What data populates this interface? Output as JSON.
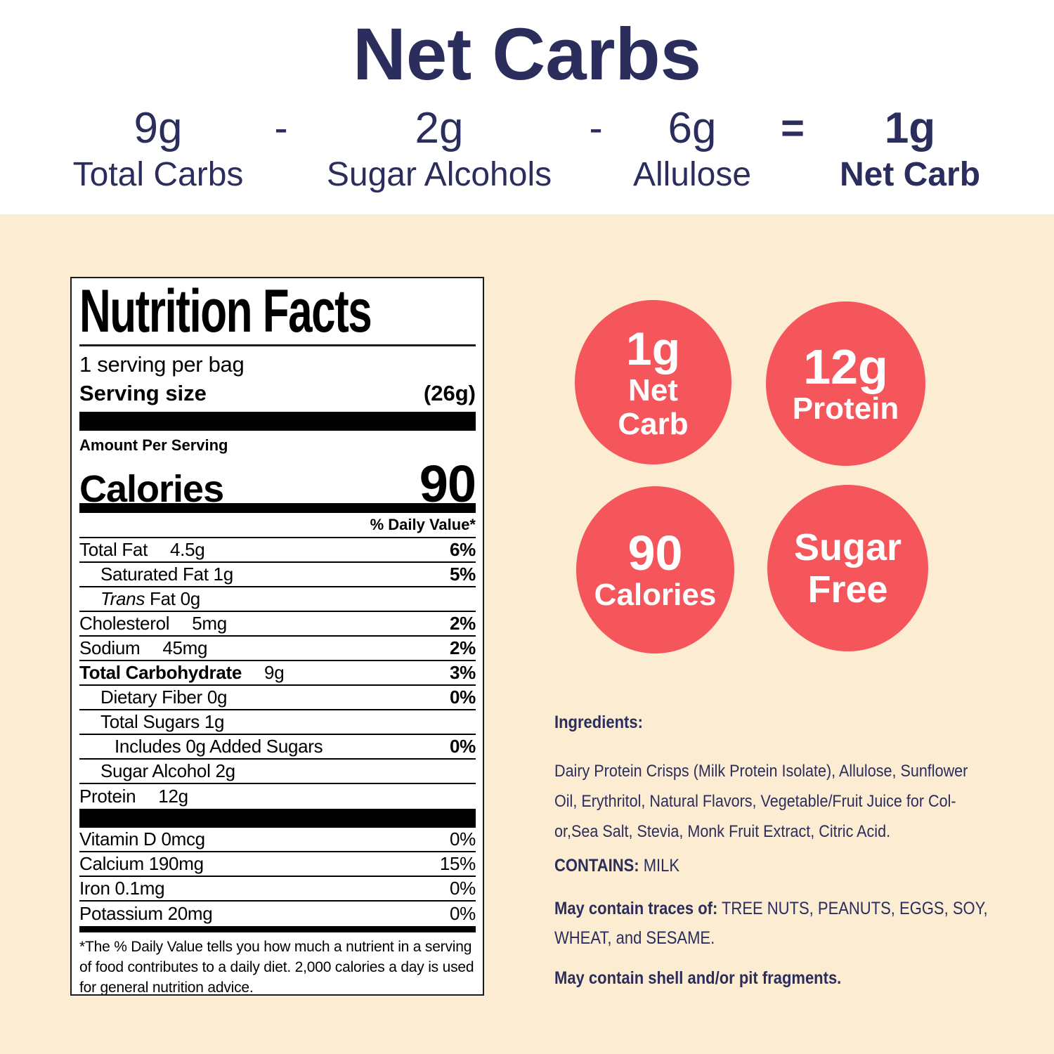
{
  "colors": {
    "navy": "#2B2E5C",
    "red": "#F4565C",
    "cream": "#FCECD2",
    "label_border": "#1b1b19",
    "white": "#FFFFFF",
    "black": "#000000"
  },
  "header": {
    "title": "Net Carbs",
    "terms": [
      {
        "value": "9g",
        "label": "Total Carbs"
      },
      {
        "value": "2g",
        "label": "Sugar Alcohols"
      },
      {
        "value": "6g",
        "label": "Allulose"
      },
      {
        "value": "1g",
        "label": "Net Carb",
        "bold": true
      }
    ],
    "operators": [
      "-",
      "-",
      "="
    ]
  },
  "nutrition_label": {
    "title": "Nutrition Facts",
    "servings_per": "1 serving per bag",
    "serving_size_label": "Serving size",
    "serving_size_value": "(26g)",
    "amount_per_serving": "Amount Per Serving",
    "calories_label": "Calories",
    "calories_value": "90",
    "daily_value_header": "% Daily Value*",
    "rows": [
      {
        "name": "Total Fat",
        "amount": "4.5g",
        "dv": "6%",
        "indent": 0
      },
      {
        "name": "Saturated Fat 1g",
        "dv": "5%",
        "indent": 1
      },
      {
        "italic": "Trans",
        "name": "Fat 0g",
        "indent": 1
      },
      {
        "name": "Cholesterol",
        "amount": "5mg",
        "dv": "2%",
        "indent": 0
      },
      {
        "name": "Sodium",
        "amount": "45mg",
        "dv": "2%",
        "indent": 0
      },
      {
        "name": "Total Carbohydrate",
        "amount": "9g",
        "dv": "3%",
        "indent": 0,
        "bold": true
      },
      {
        "name": "Dietary Fiber 0g",
        "dv": "0%",
        "indent": 1
      },
      {
        "name": "Total Sugars 1g",
        "indent": 1
      },
      {
        "name": "Includes 0g Added Sugars",
        "dv": "0%",
        "indent": 2
      },
      {
        "name": "Sugar Alcohol 2g",
        "indent": 1
      },
      {
        "name": "Protein",
        "amount": "12g",
        "indent": 0
      }
    ],
    "vitamins": [
      {
        "name": "Vitamin D 0mcg",
        "dv": "0%"
      },
      {
        "name": "Calcium 190mg",
        "dv": "15%"
      },
      {
        "name": "Iron 0.1mg",
        "dv": "0%"
      },
      {
        "name": "Potassium 20mg",
        "dv": "0%"
      }
    ],
    "footnote": "*The % Daily Value tells you how much a nutrient in a serving of food contributes to a daily diet. 2,000 calories a day is used for general nutrition advice."
  },
  "badges": [
    {
      "value": "1g",
      "label": "Net\nCarb"
    },
    {
      "value": "12g",
      "label": "Protein"
    },
    {
      "value": "90",
      "label": "Calories"
    },
    {
      "value": "Sugar",
      "label": "Free"
    }
  ],
  "ingredients": {
    "heading": "Ingredients:",
    "body": "Dairy Protein Crisps (Milk Protein Isolate), Allulose, Sunflower\nOil, Erythritol, Natural Flavors, Vegetable/Fruit Juice for Col-\nor,Sea Salt, Stevia, Monk Fruit Extract, Citric Acid.",
    "contains_label": "CONTAINS:",
    "contains_value": "MILK",
    "traces_label": "May contain traces of:",
    "traces_value": "TREE NUTS, PEANUTS, EGGS, SOY,\nWHEAT, and SESAME.",
    "shell_note": "May contain shell and/or pit fragments."
  }
}
